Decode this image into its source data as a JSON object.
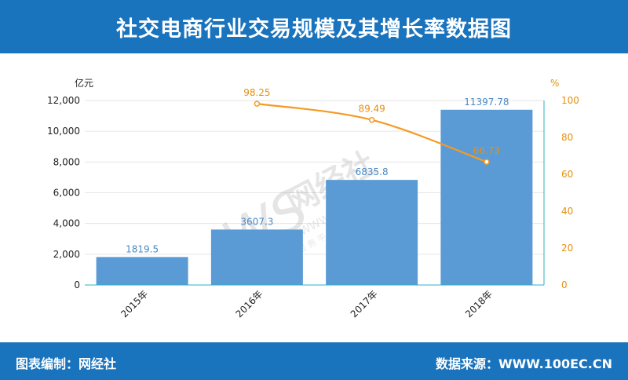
{
  "header": {
    "title": "社交电商行业交易规模及其增长率数据图"
  },
  "footer": {
    "left_label": "图表编制：网经社",
    "right_label": "数据来源：WWW.100EC.CN"
  },
  "watermark": {
    "brand": "网经社",
    "domain": "WWW.100EC.CN",
    "tagline": "网 络 经 济 服 务 平 台"
  },
  "colors": {
    "header_bg": "#1a73bd",
    "bar": "#5b9bd5",
    "line": "#f59a23",
    "bar_label": "#4a8ac5",
    "pct_label": "#e6900f",
    "axis_text": "#222222"
  },
  "chart_data": {
    "type": "bar",
    "categories": [
      "2015年",
      "2016年",
      "2017年",
      "2018年"
    ],
    "series": [
      {
        "name": "",
        "type": "bar",
        "axis": "left",
        "values": [
          1819.5,
          3607.3,
          6835.8,
          11397.78
        ],
        "labels": [
          "1819.5",
          "3607.3",
          "6835.8",
          "11397.78"
        ]
      },
      {
        "name": "",
        "type": "line",
        "axis": "right",
        "values": [
          null,
          98.25,
          89.49,
          66.73
        ],
        "labels": [
          "",
          "98.25",
          "89.49",
          "66.73"
        ]
      }
    ],
    "y_left": {
      "unit": "亿元",
      "min": 0,
      "max": 12000,
      "ticks": [
        "0",
        "2,000",
        "4,000",
        "6,000",
        "8,000",
        "10,000",
        "12,000"
      ]
    },
    "y_right": {
      "unit": "%",
      "min": 0,
      "max": 100,
      "ticks": [
        "0",
        "20",
        "40",
        "60",
        "80",
        "100"
      ]
    },
    "grid": true
  }
}
